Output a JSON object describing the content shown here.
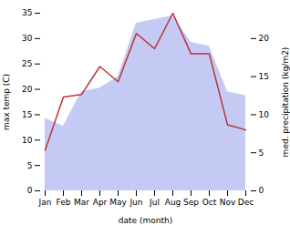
{
  "chart_data": {
    "type": "line",
    "xlabel": "date (month)",
    "ylabel": "max temp (C)",
    "y2label": "med. precipitation (kg/m2)",
    "categories": [
      "Jan",
      "Feb",
      "Mar",
      "Apr",
      "May",
      "Jun",
      "Jul",
      "Aug",
      "Sep",
      "Oct",
      "Nov",
      "Dec"
    ],
    "series": [
      {
        "type": "area",
        "axis": "y2",
        "color": "#c5caf5",
        "values": [
          9.5,
          8.5,
          13.0,
          13.5,
          15.0,
          22.0,
          22.5,
          23.0,
          19.5,
          19.0,
          13.0,
          12.5
        ]
      },
      {
        "type": "line",
        "color": "#bb3333",
        "values": [
          8.0,
          18.5,
          19.0,
          24.5,
          21.5,
          31.0,
          28.0,
          35.0,
          27.0,
          27.0,
          13.0,
          12.0
        ]
      }
    ],
    "ylim": [
      0,
      35
    ],
    "yticks": [
      0,
      5,
      10,
      15,
      20,
      25,
      30,
      35
    ],
    "y2lim": [
      0,
      23.33
    ],
    "y2ticks": [
      0,
      5,
      10,
      15,
      20
    ],
    "grid": false
  }
}
